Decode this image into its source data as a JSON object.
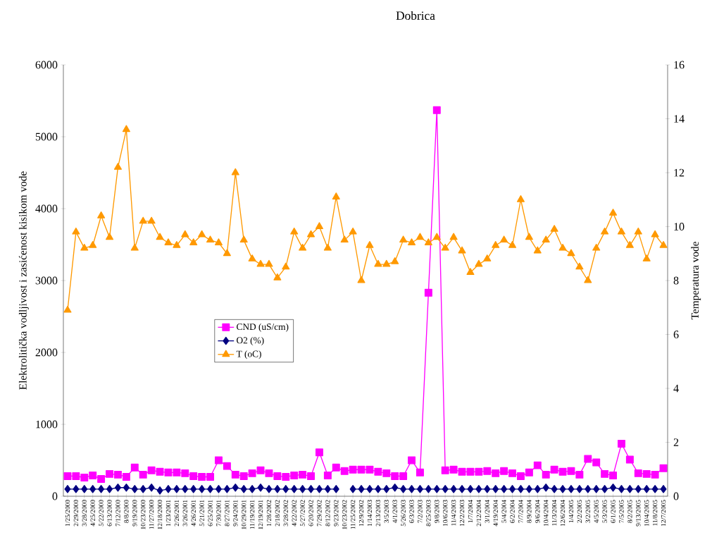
{
  "chart_data": {
    "type": "line",
    "title": "Dobrica",
    "ylabel": "Elektrolitička vodljivost i zasićenost kisikom vode",
    "y2label": "Temperatura vode",
    "categories": [
      "1/25/2000",
      "2/29/2000",
      "3/28/2000",
      "4/25/2000",
      "5/22/2000",
      "6/13/2000",
      "7/12/2000",
      "8/8/2000",
      "9/19/2000",
      "10/23/2000",
      "11/27/2000",
      "12/18/2000",
      "1/23/2001",
      "2/26/2001",
      "3/26/2001",
      "4/26/2001",
      "5/21/2001",
      "6/25/2001",
      "7/30/2001",
      "8/27/2001",
      "9/24/2001",
      "10/29/2001",
      "11/19/2001",
      "12/19/2001",
      "1/28/2002",
      "2/18/2002",
      "3/28/2002",
      "4/22/2002",
      "5/27/2002",
      "6/20/2002",
      "7/29/2002",
      "8/12/2002",
      "9/23/2002",
      "10/23/2002",
      "11/25/2002",
      "12/9/2002",
      "1/14/2003",
      "2/13/2003",
      "3/5/2003",
      "4/1/2003",
      "5/26/2003",
      "6/3/2003",
      "7/2/2003",
      "8/25/2003",
      "9/8/2003",
      "10/6/2003",
      "11/4/2003",
      "12/2/2003",
      "1/7/2004",
      "2/12/2004",
      "3/1/2004",
      "4/19/2004",
      "5/4/2004",
      "6/2/2004",
      "7/7/2004",
      "8/9/2004",
      "9/6/2004",
      "10/4/2004",
      "11/3/2004",
      "12/6/2004",
      "1/4/2005",
      "2/2/2005",
      "3/2/2005",
      "4/5/2005",
      "5/3/2005",
      "6/1/2005",
      "7/5/2005",
      "8/2/2005",
      "9/13/2005",
      "10/4/2005",
      "11/8/2005",
      "12/7/2005"
    ],
    "series": [
      {
        "name": "CND (uS/cm)",
        "color": "#ff00ff",
        "marker": "square",
        "values": [
          280,
          280,
          260,
          290,
          240,
          310,
          300,
          270,
          400,
          300,
          360,
          340,
          330,
          330,
          320,
          280,
          270,
          270,
          500,
          420,
          300,
          280,
          320,
          360,
          320,
          280,
          270,
          290,
          300,
          280,
          610,
          290,
          400,
          350,
          370,
          370,
          370,
          340,
          320,
          280,
          280,
          500,
          330,
          2830,
          5370,
          360,
          370,
          340,
          340,
          340,
          350,
          320,
          350,
          320,
          280,
          330,
          430,
          300,
          370,
          340,
          350,
          300,
          520,
          470,
          310,
          290,
          730,
          510,
          320,
          310,
          300,
          390
        ]
      },
      {
        "name": "O2 (%)",
        "color": "#000080",
        "marker": "diamond",
        "values": [
          100,
          100,
          100,
          100,
          100,
          100,
          120,
          120,
          100,
          100,
          120,
          80,
          100,
          100,
          100,
          100,
          100,
          100,
          100,
          100,
          120,
          100,
          100,
          120,
          100,
          100,
          100,
          100,
          100,
          100,
          100,
          100,
          100,
          null,
          100,
          100,
          100,
          100,
          100,
          120,
          100,
          100,
          100,
          100,
          100,
          100,
          100,
          100,
          100,
          100,
          100,
          100,
          100,
          100,
          100,
          100,
          100,
          120,
          100,
          100,
          100,
          100,
          100,
          100,
          100,
          120,
          100,
          100,
          100,
          100,
          100,
          100
        ]
      },
      {
        "name": "T (oC)",
        "color": "#ff9900",
        "marker": "triangle",
        "axis": "y2",
        "values": [
          6.9,
          9.8,
          9.2,
          9.3,
          10.4,
          9.6,
          12.2,
          13.6,
          9.2,
          10.2,
          10.2,
          9.6,
          9.4,
          9.3,
          9.7,
          9.4,
          9.7,
          9.5,
          9.4,
          9.0,
          12.0,
          9.5,
          8.8,
          8.6,
          8.6,
          8.1,
          8.5,
          9.8,
          9.2,
          9.7,
          10.0,
          9.2,
          11.1,
          9.5,
          9.8,
          8.0,
          9.3,
          8.6,
          8.6,
          8.7,
          9.5,
          9.4,
          9.6,
          9.4,
          9.6,
          9.2,
          9.6,
          9.1,
          8.3,
          8.6,
          8.8,
          9.3,
          9.5,
          9.3,
          11.0,
          9.6,
          9.1,
          9.5,
          9.9,
          9.2,
          9.0,
          8.5,
          8.0,
          9.2,
          9.8,
          10.5,
          9.8,
          9.3,
          9.8,
          8.8,
          9.7,
          9.3
        ]
      }
    ],
    "ylim": [
      0,
      6000
    ],
    "yticks": [
      0,
      1000,
      2000,
      3000,
      4000,
      5000,
      6000
    ],
    "y2lim": [
      0,
      16
    ],
    "y2ticks": [
      0,
      2,
      4,
      6,
      8,
      10,
      12,
      14,
      16
    ],
    "legend": "left"
  }
}
